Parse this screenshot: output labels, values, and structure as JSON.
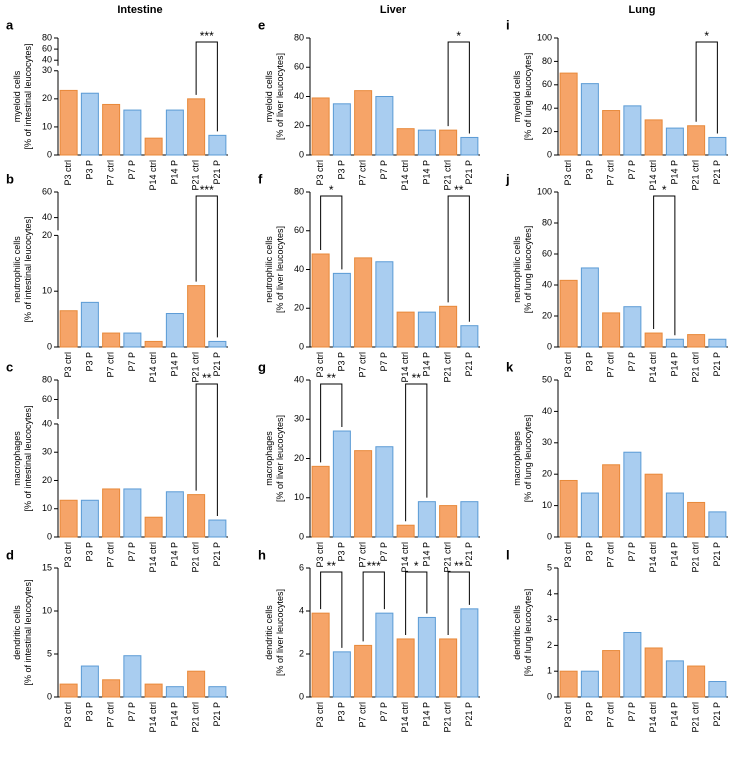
{
  "column_titles": [
    "Intestine",
    "Liver",
    "Lung"
  ],
  "chart_data": [
    {
      "type": "bar",
      "panel": "a",
      "ylabel": [
        "myeloid cells",
        "[% of intestinal leucocytes]"
      ],
      "categories": [
        "P3 ctrl",
        "P3 P",
        "P7 ctrl",
        "P7 P",
        "P14 ctrl",
        "P14 P",
        "P21 ctrl",
        "P21 P"
      ],
      "values": [
        23,
        22,
        18,
        16,
        6,
        16,
        20,
        7
      ],
      "colors": [
        "#f6a468",
        "#a9cdf0"
      ],
      "edge_colors": [
        "#e8893a",
        "#5b9bd5"
      ],
      "segments": [
        {
          "ylim": [
            0,
            30
          ],
          "yticks": [
            0,
            10,
            20,
            30
          ]
        },
        {
          "ylim": [
            30,
            80
          ],
          "yticks": [
            40,
            60,
            80
          ]
        }
      ],
      "significance": [
        {
          "from": 6,
          "to": 7,
          "text": "***"
        }
      ]
    },
    {
      "type": "bar",
      "panel": "b",
      "ylabel": [
        "neutrophilic cells",
        "[% of intestinal leucocytes]"
      ],
      "categories": [
        "P3 ctrl",
        "P3 P",
        "P7 ctrl",
        "P7 P",
        "P14 ctrl",
        "P14 P",
        "P21 ctrl",
        "P21 P"
      ],
      "values": [
        6.5,
        8,
        2.5,
        2.5,
        1,
        6,
        11,
        1
      ],
      "colors": [
        "#f6a468",
        "#a9cdf0"
      ],
      "edge_colors": [
        "#e8893a",
        "#5b9bd5"
      ],
      "segments": [
        {
          "ylim": [
            0,
            20
          ],
          "yticks": [
            0,
            10,
            20
          ]
        },
        {
          "ylim": [
            30,
            60
          ],
          "yticks": [
            40,
            60
          ]
        }
      ],
      "significance": [
        {
          "from": 6,
          "to": 7,
          "text": "***"
        }
      ]
    },
    {
      "type": "bar",
      "panel": "c",
      "ylabel": [
        "macrophages",
        "[% of intestinal leucocytes]"
      ],
      "categories": [
        "P3 ctrl",
        "P3 P",
        "P7 ctrl",
        "P7 P",
        "P14 ctrl",
        "P14 P",
        "P21 ctrl",
        "P21 P"
      ],
      "values": [
        13,
        13,
        17,
        17,
        7,
        16,
        15,
        6
      ],
      "colors": [
        "#f6a468",
        "#a9cdf0"
      ],
      "edge_colors": [
        "#e8893a",
        "#5b9bd5"
      ],
      "segments": [
        {
          "ylim": [
            0,
            40
          ],
          "yticks": [
            0,
            10,
            20,
            30,
            40
          ]
        },
        {
          "ylim": [
            40,
            80
          ],
          "yticks": [
            60,
            80
          ]
        }
      ],
      "significance": [
        {
          "from": 6,
          "to": 7,
          "text": "**"
        }
      ]
    },
    {
      "type": "bar",
      "panel": "d",
      "ylabel": [
        "dendritic cells",
        "[% of intestinal leucocytes]"
      ],
      "categories": [
        "P3 ctrl",
        "P3 P",
        "P7 ctrl",
        "P7 P",
        "P14 ctrl",
        "P14 P",
        "P21 ctrl",
        "P21 P"
      ],
      "values": [
        1.5,
        3.6,
        2,
        4.8,
        1.5,
        1.2,
        3,
        1.2
      ],
      "colors": [
        "#f6a468",
        "#a9cdf0"
      ],
      "edge_colors": [
        "#e8893a",
        "#5b9bd5"
      ],
      "segments": [
        {
          "ylim": [
            0,
            15
          ],
          "yticks": [
            0,
            5,
            10,
            15
          ]
        }
      ],
      "significance": []
    },
    {
      "type": "bar",
      "panel": "e",
      "ylabel": [
        "myeloid cells",
        "[% of liver leucocytes]"
      ],
      "categories": [
        "P3 ctrl",
        "P3 P",
        "P7 ctrl",
        "P7 P",
        "P14 ctrl",
        "P14 P",
        "P21 ctrl",
        "P21 P"
      ],
      "values": [
        39,
        35,
        44,
        40,
        18,
        17,
        17,
        12
      ],
      "colors": [
        "#f6a468",
        "#a9cdf0"
      ],
      "edge_colors": [
        "#e8893a",
        "#5b9bd5"
      ],
      "segments": [
        {
          "ylim": [
            0,
            80
          ],
          "yticks": [
            0,
            20,
            40,
            60,
            80
          ]
        }
      ],
      "significance": [
        {
          "from": 6,
          "to": 7,
          "text": "*"
        }
      ]
    },
    {
      "type": "bar",
      "panel": "f",
      "ylabel": [
        "neutrophilic cells",
        "[% of liver leucocytes]"
      ],
      "categories": [
        "P3 ctrl",
        "P3 P",
        "P7 ctrl",
        "P7 P",
        "P14 ctrl",
        "P14 P",
        "P21 ctrl",
        "P21 P"
      ],
      "values": [
        48,
        38,
        46,
        44,
        18,
        18,
        21,
        11
      ],
      "colors": [
        "#f6a468",
        "#a9cdf0"
      ],
      "edge_colors": [
        "#e8893a",
        "#5b9bd5"
      ],
      "segments": [
        {
          "ylim": [
            0,
            80
          ],
          "yticks": [
            0,
            20,
            40,
            60,
            80
          ]
        }
      ],
      "significance": [
        {
          "from": 0,
          "to": 1,
          "text": "*"
        },
        {
          "from": 6,
          "to": 7,
          "text": "**"
        }
      ]
    },
    {
      "type": "bar",
      "panel": "g",
      "ylabel": [
        "macrophages",
        "[% of liver leucocytes]"
      ],
      "categories": [
        "P3 ctrl",
        "P3 P",
        "P7 ctrl",
        "P7 P",
        "P14 ctrl",
        "P14 P",
        "P21 ctrl",
        "P21 P"
      ],
      "values": [
        18,
        27,
        22,
        23,
        3,
        9,
        8,
        9
      ],
      "colors": [
        "#f6a468",
        "#a9cdf0"
      ],
      "edge_colors": [
        "#e8893a",
        "#5b9bd5"
      ],
      "segments": [
        {
          "ylim": [
            0,
            40
          ],
          "yticks": [
            0,
            10,
            20,
            30,
            40
          ]
        }
      ],
      "significance": [
        {
          "from": 0,
          "to": 1,
          "text": "**"
        },
        {
          "from": 4,
          "to": 5,
          "text": "**"
        }
      ]
    },
    {
      "type": "bar",
      "panel": "h",
      "ylabel": [
        "dendritic cells",
        "[% of liver leucocytes]"
      ],
      "categories": [
        "P3 ctrl",
        "P3 P",
        "P7 ctrl",
        "P7 P",
        "P14 ctrl",
        "P14 P",
        "P21 ctrl",
        "P21 P"
      ],
      "values": [
        3.9,
        2.1,
        2.4,
        3.9,
        2.7,
        3.7,
        2.7,
        4.1
      ],
      "colors": [
        "#f6a468",
        "#a9cdf0"
      ],
      "edge_colors": [
        "#e8893a",
        "#5b9bd5"
      ],
      "segments": [
        {
          "ylim": [
            0,
            6
          ],
          "yticks": [
            0,
            2,
            4,
            6
          ]
        }
      ],
      "significance": [
        {
          "from": 0,
          "to": 1,
          "text": "**"
        },
        {
          "from": 2,
          "to": 3,
          "text": "***"
        },
        {
          "from": 4,
          "to": 5,
          "text": "*"
        },
        {
          "from": 6,
          "to": 7,
          "text": "**"
        }
      ]
    },
    {
      "type": "bar",
      "panel": "i",
      "ylabel": [
        "myeloid cells",
        "[% of lung leucocytes]"
      ],
      "categories": [
        "P3 ctrl",
        "P3 P",
        "P7 ctrl",
        "P7 P",
        "P14 ctrl",
        "P14 P",
        "P21 ctrl",
        "P21 P"
      ],
      "values": [
        70,
        61,
        38,
        42,
        30,
        23,
        25,
        15
      ],
      "colors": [
        "#f6a468",
        "#a9cdf0"
      ],
      "edge_colors": [
        "#e8893a",
        "#5b9bd5"
      ],
      "segments": [
        {
          "ylim": [
            0,
            100
          ],
          "yticks": [
            0,
            20,
            40,
            60,
            80,
            100
          ]
        }
      ],
      "significance": [
        {
          "from": 6,
          "to": 7,
          "text": "*"
        }
      ]
    },
    {
      "type": "bar",
      "panel": "j",
      "ylabel": [
        "neutrophilic cells",
        "[% of lung leucocytes]"
      ],
      "categories": [
        "P3 ctrl",
        "P3 P",
        "P7 ctrl",
        "P7 P",
        "P14 ctrl",
        "P14 P",
        "P21 ctrl",
        "P21 P"
      ],
      "values": [
        43,
        51,
        22,
        26,
        9,
        5,
        8,
        5
      ],
      "colors": [
        "#f6a468",
        "#a9cdf0"
      ],
      "edge_colors": [
        "#e8893a",
        "#5b9bd5"
      ],
      "segments": [
        {
          "ylim": [
            0,
            100
          ],
          "yticks": [
            0,
            20,
            40,
            60,
            80,
            100
          ]
        }
      ],
      "significance": [
        {
          "from": 4,
          "to": 5,
          "text": "*"
        }
      ]
    },
    {
      "type": "bar",
      "panel": "k",
      "ylabel": [
        "macrophages",
        "[% of lung leucocytes]"
      ],
      "categories": [
        "P3 ctrl",
        "P3 P",
        "P7 ctrl",
        "P7 P",
        "P14 ctrl",
        "P14 P",
        "P21 ctrl",
        "P21 P"
      ],
      "values": [
        18,
        14,
        23,
        27,
        20,
        14,
        11,
        8
      ],
      "colors": [
        "#f6a468",
        "#a9cdf0"
      ],
      "edge_colors": [
        "#e8893a",
        "#5b9bd5"
      ],
      "segments": [
        {
          "ylim": [
            0,
            50
          ],
          "yticks": [
            0,
            10,
            20,
            30,
            40,
            50
          ]
        }
      ],
      "significance": []
    },
    {
      "type": "bar",
      "panel": "l",
      "ylabel": [
        "dendritic cells",
        "[% of lung leucocytes]"
      ],
      "categories": [
        "P3 ctrl",
        "P3 P",
        "P7 ctrl",
        "P7 P",
        "P14 ctrl",
        "P14 P",
        "P21 ctrl",
        "P21 P"
      ],
      "values": [
        1.0,
        1.0,
        1.8,
        2.5,
        1.9,
        1.4,
        1.2,
        0.6
      ],
      "colors": [
        "#f6a468",
        "#a9cdf0"
      ],
      "edge_colors": [
        "#e8893a",
        "#5b9bd5"
      ],
      "segments": [
        {
          "ylim": [
            0,
            5
          ],
          "yticks": [
            0,
            1,
            2,
            3,
            4,
            5
          ]
        }
      ],
      "significance": []
    }
  ]
}
